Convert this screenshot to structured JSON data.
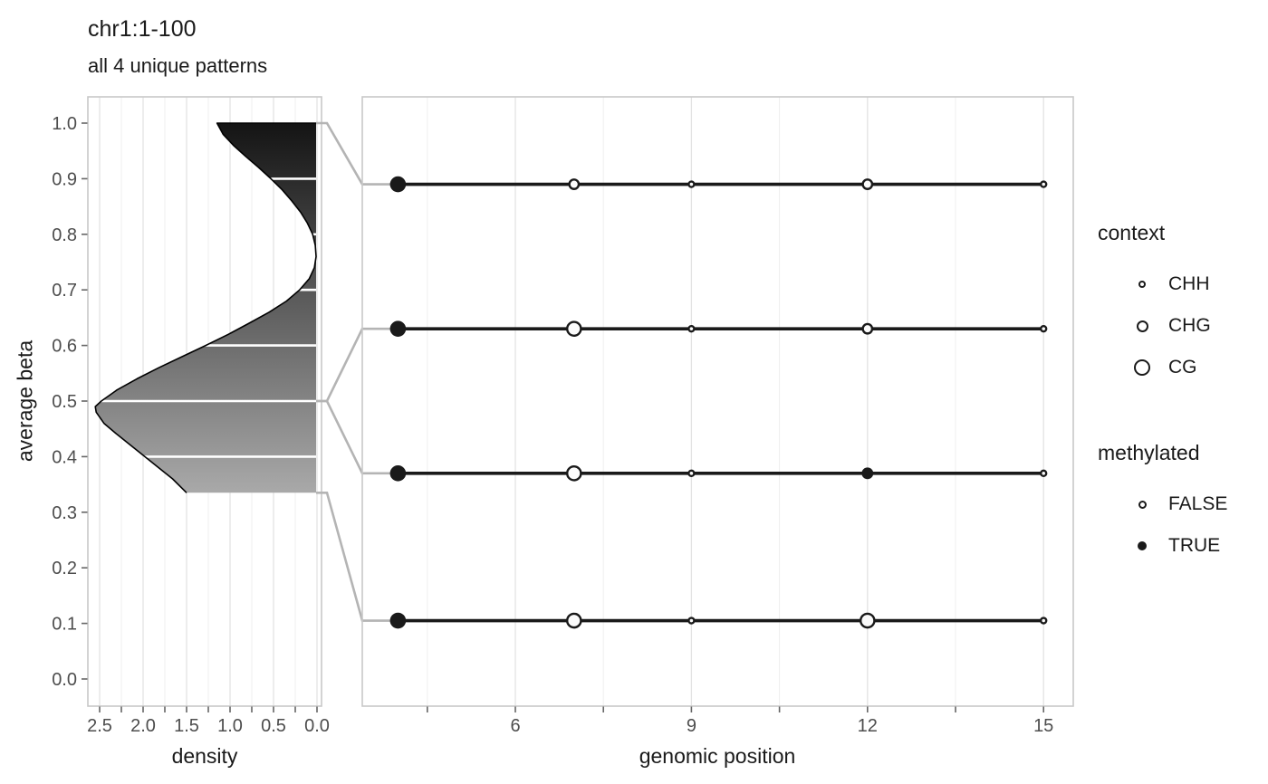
{
  "header": {
    "title": "chr1:1-100",
    "subtitle": "all 4 unique patterns"
  },
  "left_panel_axis": {
    "x_label": "density",
    "x_tick_labels": [
      "2.5",
      "2.0",
      "1.5",
      "1.0",
      "0.5",
      "0.0"
    ],
    "y_label": "average beta",
    "y_tick_labels": [
      "1.0",
      "0.9",
      "0.8",
      "0.7",
      "0.6",
      "0.5",
      "0.4",
      "0.3",
      "0.2",
      "0.1",
      "0.0"
    ]
  },
  "right_panel_axis": {
    "x_label": "genomic position",
    "x_tick_labels": [
      "6",
      "9",
      "12",
      "15"
    ],
    "x_minor_ticks": [
      4.5,
      7.5,
      10.5,
      13.5
    ]
  },
  "legend": {
    "context": {
      "title": "context",
      "items": [
        {
          "label": "CHH",
          "size": 8,
          "filled": false
        },
        {
          "label": "CHG",
          "size": 13,
          "filled": false
        },
        {
          "label": "CG",
          "size": 18,
          "filled": false
        }
      ]
    },
    "methylated": {
      "title": "methylated",
      "items": [
        {
          "label": "FALSE",
          "size": 9,
          "filled": false
        },
        {
          "label": "TRUE",
          "size": 10,
          "filled": true
        }
      ]
    }
  },
  "colors": {
    "text": "#1a1a1a",
    "tick_label": "#4d4d4d",
    "tick_mark": "#666666",
    "grid_major": "#e3e3e3",
    "grid_minor": "#efefef",
    "panel_border": "#c8c8c8",
    "connector": "#b4b4b4",
    "stem": "#1a1a1a",
    "open_fill": "#fbfbfb",
    "white_line": "#ffffff",
    "gradient_top": "#141414",
    "gradient_bottom": "#a9a9a9"
  },
  "chart_data": [
    {
      "type": "area",
      "title": "density of average beta (rotated, x reversed)",
      "xlabel": "density",
      "ylabel": "average beta",
      "xlim": [
        2.65,
        0.0
      ],
      "ylim": [
        0.0,
        1.0
      ],
      "x_major_ticks": [
        2.5,
        2.0,
        1.5,
        1.0,
        0.5,
        0.0
      ],
      "x_minor_step": 0.25,
      "y_major_ticks": [
        0.0,
        0.1,
        0.2,
        0.3,
        0.4,
        0.5,
        0.6,
        0.7,
        0.8,
        0.9,
        1.0
      ],
      "truncated_at_beta": [
        0.335,
        1.0
      ],
      "segment_lines_at": [
        0.9,
        0.8,
        0.7,
        0.6,
        0.5,
        0.4
      ],
      "profile_beta_density": [
        [
          1.0,
          1.15
        ],
        [
          0.98,
          1.08
        ],
        [
          0.96,
          0.96
        ],
        [
          0.94,
          0.82
        ],
        [
          0.92,
          0.67
        ],
        [
          0.9,
          0.53
        ],
        [
          0.88,
          0.4
        ],
        [
          0.86,
          0.29
        ],
        [
          0.84,
          0.19
        ],
        [
          0.82,
          0.11
        ],
        [
          0.8,
          0.05
        ],
        [
          0.78,
          0.02
        ],
        [
          0.76,
          0.01
        ],
        [
          0.74,
          0.03
        ],
        [
          0.72,
          0.09
        ],
        [
          0.7,
          0.2
        ],
        [
          0.68,
          0.35
        ],
        [
          0.66,
          0.55
        ],
        [
          0.64,
          0.78
        ],
        [
          0.62,
          1.02
        ],
        [
          0.6,
          1.28
        ],
        [
          0.58,
          1.55
        ],
        [
          0.56,
          1.82
        ],
        [
          0.54,
          2.07
        ],
        [
          0.52,
          2.3
        ],
        [
          0.5,
          2.48
        ],
        [
          0.49,
          2.55
        ],
        [
          0.48,
          2.54
        ],
        [
          0.46,
          2.45
        ],
        [
          0.44,
          2.3
        ],
        [
          0.42,
          2.14
        ],
        [
          0.4,
          1.98
        ],
        [
          0.38,
          1.82
        ],
        [
          0.36,
          1.66
        ],
        [
          0.335,
          1.5
        ]
      ]
    },
    {
      "type": "scatter",
      "title": "methylation patterns lollipop panel",
      "xlabel": "genomic position",
      "xlim": [
        3.44,
        15.5
      ],
      "x_major_ticks": [
        6,
        9,
        12,
        15
      ],
      "x_minor_ticks": [
        4.5,
        7.5,
        10.5,
        13.5
      ],
      "context_radius": {
        "CHH": 3.0,
        "CHG": 5.2,
        "CG": 7.6
      },
      "rows": [
        {
          "average_beta": 0.89,
          "connector_from_beta": 1.0,
          "points": [
            {
              "pos": 4,
              "context": "CG",
              "methylated": true
            },
            {
              "pos": 7,
              "context": "CHG",
              "methylated": false
            },
            {
              "pos": 9,
              "context": "CHH",
              "methylated": false
            },
            {
              "pos": 12,
              "context": "CHG",
              "methylated": false
            },
            {
              "pos": 15,
              "context": "CHH",
              "methylated": false
            }
          ]
        },
        {
          "average_beta": 0.63,
          "connector_from_beta": 0.5,
          "points": [
            {
              "pos": 4,
              "context": "CG",
              "methylated": true
            },
            {
              "pos": 7,
              "context": "CG",
              "methylated": false
            },
            {
              "pos": 9,
              "context": "CHH",
              "methylated": false
            },
            {
              "pos": 12,
              "context": "CHG",
              "methylated": false
            },
            {
              "pos": 15,
              "context": "CHH",
              "methylated": false
            }
          ]
        },
        {
          "average_beta": 0.37,
          "connector_from_beta": 0.5,
          "points": [
            {
              "pos": 4,
              "context": "CG",
              "methylated": true
            },
            {
              "pos": 7,
              "context": "CG",
              "methylated": false
            },
            {
              "pos": 9,
              "context": "CHH",
              "methylated": false
            },
            {
              "pos": 12,
              "context": "CHG",
              "methylated": true
            },
            {
              "pos": 15,
              "context": "CHH",
              "methylated": false
            }
          ]
        },
        {
          "average_beta": 0.105,
          "connector_from_beta": 0.335,
          "points": [
            {
              "pos": 4,
              "context": "CG",
              "methylated": true
            },
            {
              "pos": 7,
              "context": "CG",
              "methylated": false
            },
            {
              "pos": 9,
              "context": "CHH",
              "methylated": false
            },
            {
              "pos": 12,
              "context": "CG",
              "methylated": false
            },
            {
              "pos": 15,
              "context": "CHH",
              "methylated": false
            }
          ]
        }
      ]
    }
  ]
}
